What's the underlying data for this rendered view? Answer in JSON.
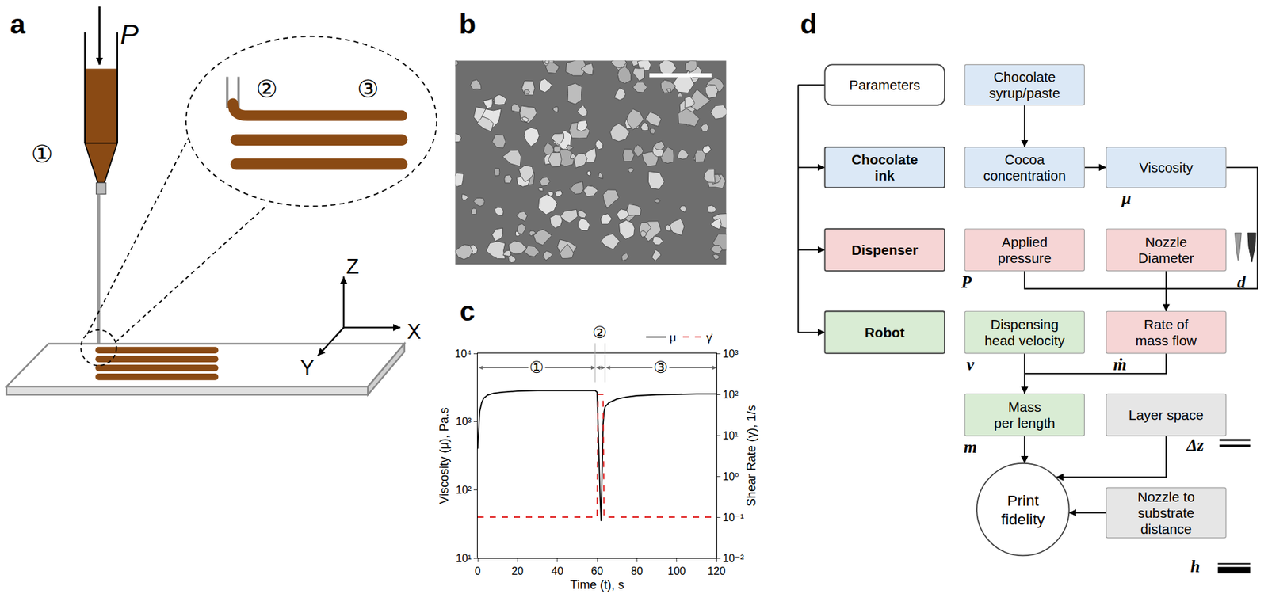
{
  "chart_data": {
    "type": "line",
    "xlabel": "Time (t), s",
    "ylabel": "Viscosity (μ), Pa.s",
    "y2label": "Shear Rate (γ̇), 1/s",
    "log": "y",
    "grid": false,
    "legend": "top right",
    "xlim": [
      0,
      120
    ],
    "xticks": [
      0,
      20,
      40,
      60,
      80,
      100,
      120
    ],
    "ylim": [
      10,
      10000
    ],
    "yticks": [
      {
        "value": 10,
        "label": "10¹"
      },
      {
        "value": 100,
        "label": "10²"
      },
      {
        "value": 1000,
        "label": "10³"
      },
      {
        "value": 10000,
        "label": "10⁴"
      }
    ],
    "y2lim": [
      0.01,
      1000
    ],
    "y2ticks": [
      {
        "value": 0.01,
        "label": "10⁻²"
      },
      {
        "value": 0.1,
        "label": "10⁻¹"
      },
      {
        "value": 1,
        "label": "10⁰"
      },
      {
        "value": 10,
        "label": "10¹"
      },
      {
        "value": 100,
        "label": "10²"
      },
      {
        "value": 1000,
        "label": "10³"
      }
    ],
    "series": [
      {
        "name": "μ",
        "color": "#000000",
        "line_style": "solid",
        "x": [
          0,
          0.5,
          1,
          2,
          3,
          5,
          8,
          12,
          20,
          30,
          40,
          50,
          59,
          60,
          60.5,
          61,
          61.5,
          62,
          62.5,
          63,
          63.5,
          64,
          66,
          70,
          75,
          80,
          90,
          100,
          110,
          120
        ],
        "values": [
          400,
          900,
          1400,
          1900,
          2200,
          2450,
          2600,
          2700,
          2800,
          2850,
          2850,
          2850,
          2850,
          2700,
          800,
          200,
          80,
          35,
          200,
          900,
          1400,
          1650,
          1900,
          2150,
          2300,
          2400,
          2480,
          2520,
          2550,
          2550
        ]
      },
      {
        "name": "γ̇",
        "color": "#e02020",
        "line_style": "dashed",
        "axis": "y2",
        "x": [
          0,
          60,
          60.5,
          63,
          63.5,
          120
        ],
        "values": [
          0.1,
          0.1,
          100,
          100,
          0.1,
          0.1
        ]
      }
    ],
    "regions": [
      {
        "label": "①",
        "start": 0,
        "end": 59
      },
      {
        "label": "②",
        "start": 59,
        "end": 64
      },
      {
        "label": "③",
        "start": 64,
        "end": 120
      }
    ]
  },
  "panels": {
    "a": {
      "label": "a",
      "pressure": "P",
      "stages": [
        "①",
        "②",
        "③"
      ],
      "axes": {
        "z": "Z",
        "x": "X",
        "y": "Y"
      }
    },
    "b": {
      "label": "b"
    },
    "c": {
      "label": "c"
    },
    "d": {
      "label": "d",
      "nodes": [
        {
          "lines": [
            "Parameters"
          ],
          "color": "#ffffff"
        },
        {
          "lines": [
            "Chocolate",
            "ink"
          ],
          "color": "#dbe8f6"
        },
        {
          "lines": [
            "Dispenser"
          ],
          "color": "#f6d5d5"
        },
        {
          "lines": [
            "Robot"
          ],
          "color": "#d9ecd4"
        },
        {
          "lines": [
            "Chocolate",
            "syrup/paste"
          ],
          "color": "#dbe8f6"
        },
        {
          "lines": [
            "Cocoa",
            "concentration"
          ],
          "color": "#dbe8f6"
        },
        {
          "lines": [
            "Viscosity"
          ],
          "color": "#dbe8f6",
          "symbol": "μ"
        },
        {
          "lines": [
            "Applied",
            "pressure"
          ],
          "color": "#f6d5d5",
          "symbol": "P"
        },
        {
          "lines": [
            "Nozzle",
            "Diameter"
          ],
          "color": "#f6d5d5",
          "symbol": "d"
        },
        {
          "lines": [
            "Dispensing",
            "head velocity"
          ],
          "color": "#d9ecd4",
          "symbol": "v"
        },
        {
          "lines": [
            "Rate of",
            "mass flow"
          ],
          "color": "#f6d5d5",
          "symbol": "ṁ"
        },
        {
          "lines": [
            "Mass",
            "per length"
          ],
          "color": "#d9ecd4",
          "symbol": "m"
        },
        {
          "lines": [
            "Layer space"
          ],
          "color": "#e6e6e6",
          "symbol": "Δz"
        },
        {
          "lines": [
            "Print",
            "fidelity"
          ],
          "color": "#ffffff"
        },
        {
          "lines": [
            "Nozzle to",
            "substrate",
            "distance"
          ],
          "color": "#e6e6e6",
          "symbol": "h"
        }
      ]
    }
  }
}
